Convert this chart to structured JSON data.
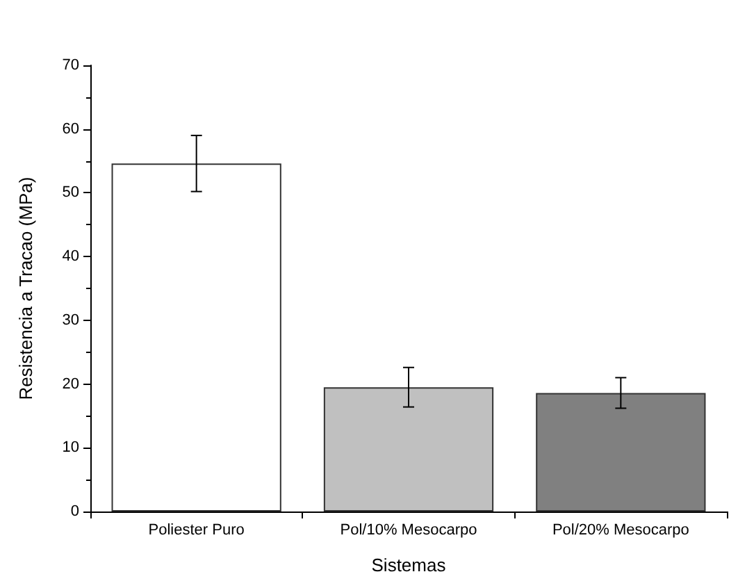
{
  "chart_data": {
    "type": "bar",
    "xlabel": "Sistemas",
    "ylabel": "Resistencia a Tracao (MPa)",
    "categories": [
      "Poliester Puro",
      "Pol/10% Mesocarpo",
      "Pol/20% Mesocarpo"
    ],
    "values": [
      54.6,
      19.5,
      18.6
    ],
    "colors": [
      "#ffffff",
      "#c0c0c0",
      "#808080"
    ],
    "errors": [
      4.4,
      3.1,
      2.4
    ],
    "ylim": [
      0,
      70
    ],
    "yticks": [
      0,
      10,
      20,
      30,
      40,
      50,
      60,
      70
    ],
    "grid": false
  }
}
